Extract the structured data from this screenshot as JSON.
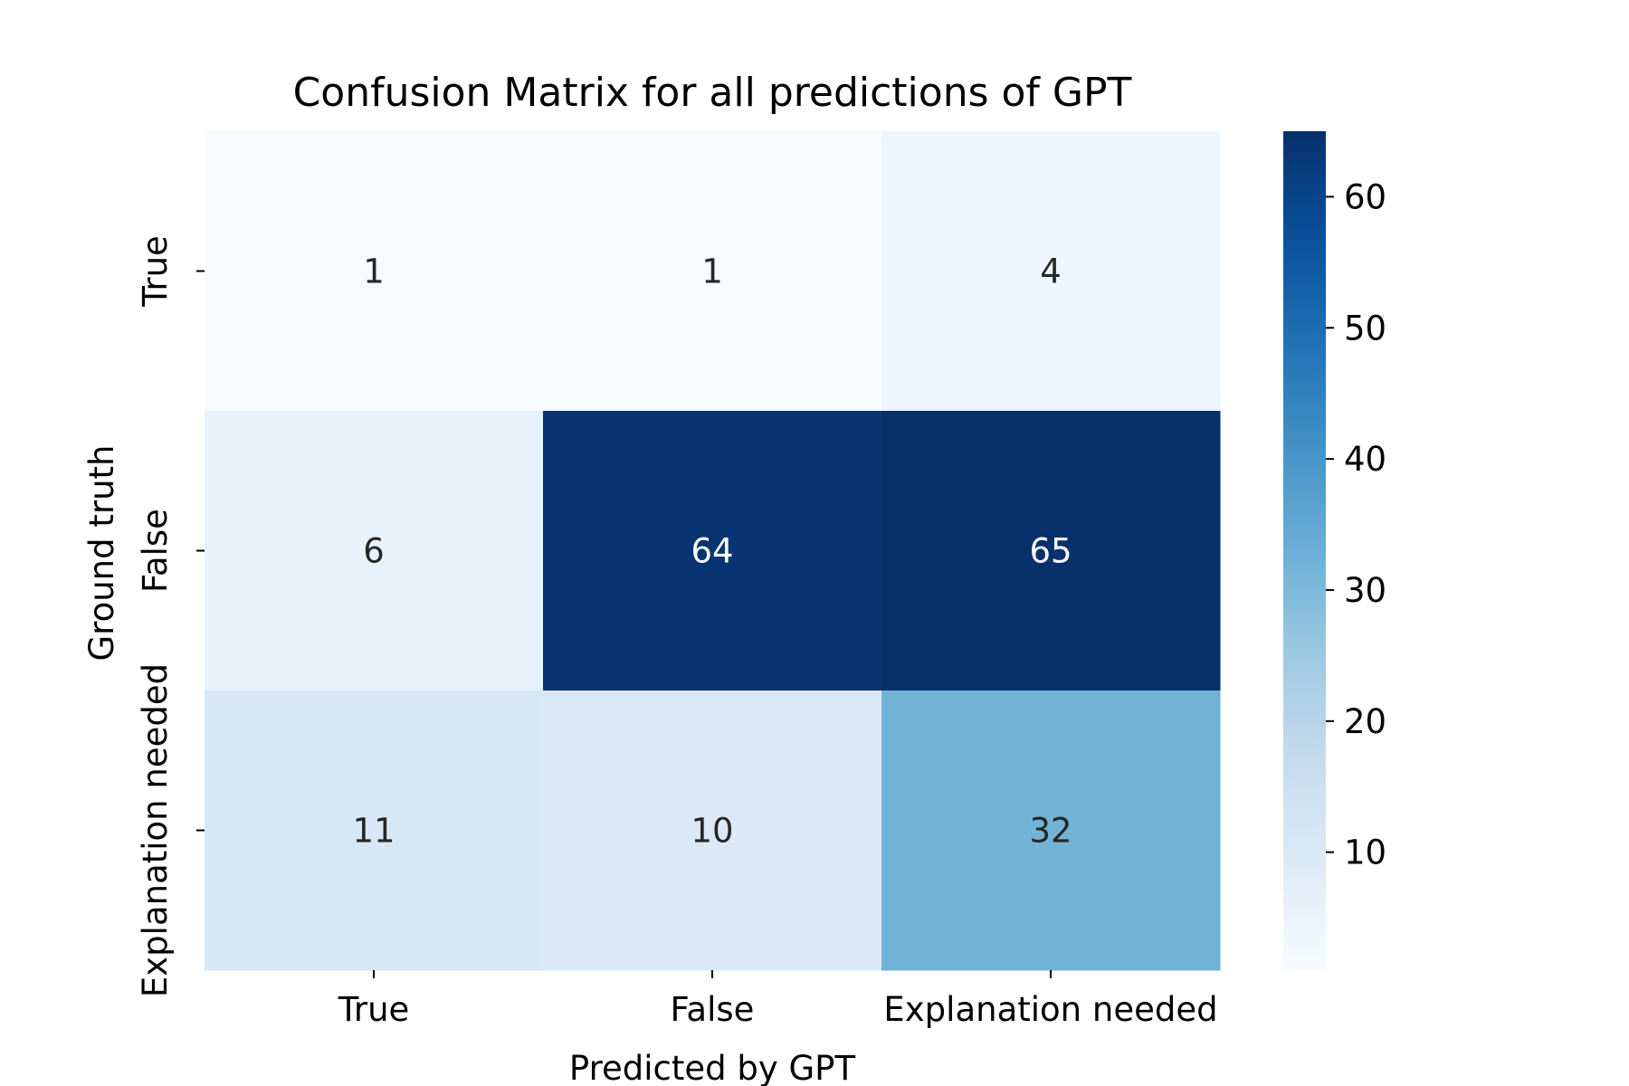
{
  "chart_data": {
    "type": "heatmap",
    "title": "Confusion Matrix for all predictions of GPT",
    "xlabel": "Predicted by GPT",
    "ylabel": "Ground truth",
    "x_categories": [
      "True",
      "False",
      "Explanation needed"
    ],
    "y_categories": [
      "True",
      "False",
      "Explanation needed"
    ],
    "values": [
      [
        1,
        1,
        4
      ],
      [
        6,
        64,
        65
      ],
      [
        11,
        10,
        32
      ]
    ],
    "colormap": "Blues",
    "color_range": [
      1,
      65
    ],
    "colorbar": {
      "ticks": [
        10,
        20,
        30,
        40,
        50,
        60
      ]
    },
    "grid": false
  }
}
